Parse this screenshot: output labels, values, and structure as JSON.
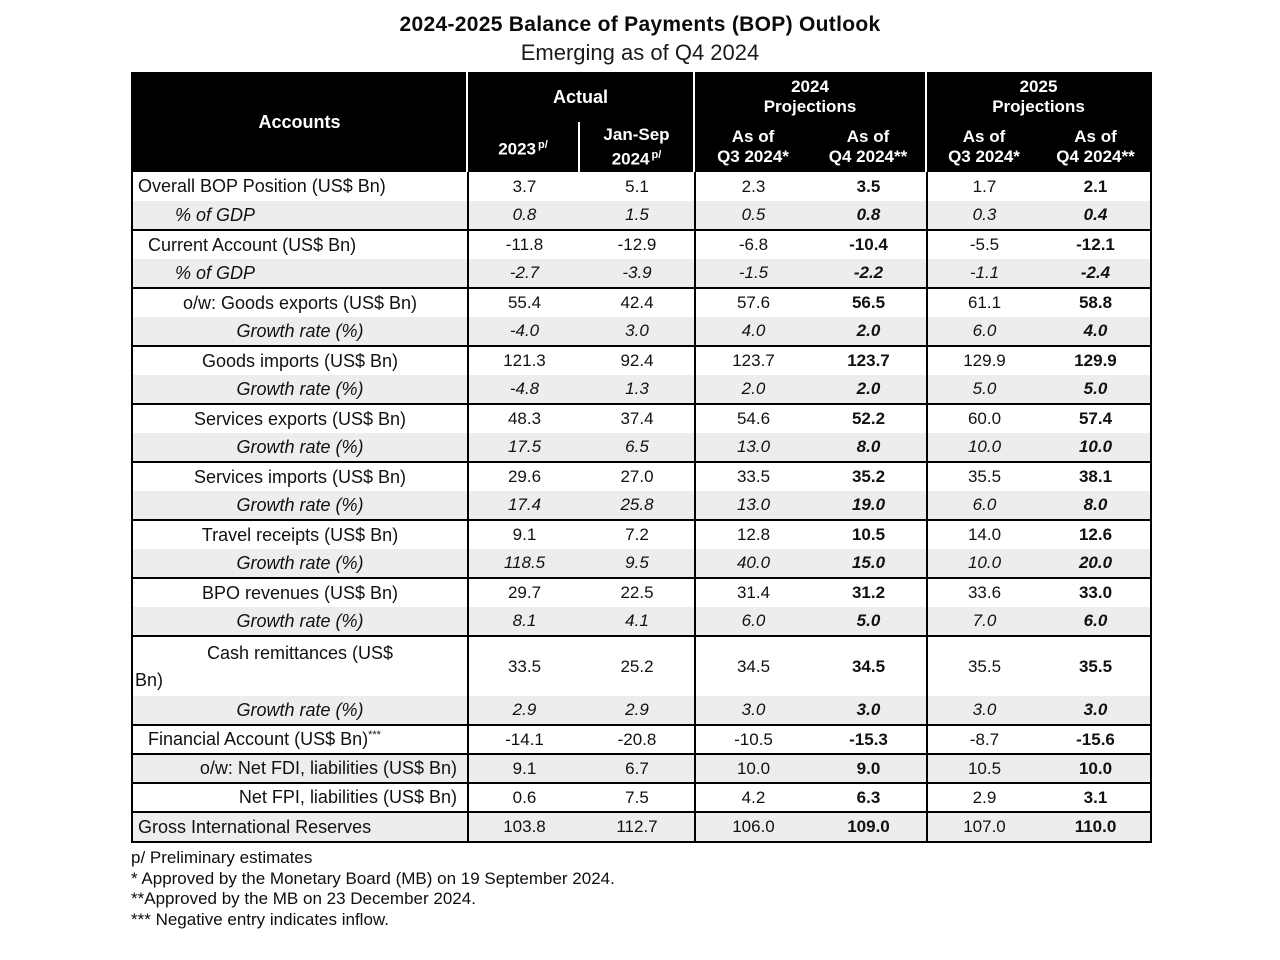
{
  "title": "2024-2025 Balance of Payments (BOP) Outlook",
  "subtitle": "Emerging as of Q4 2024",
  "colors": {
    "header_bg": "#000000",
    "header_text": "#ffffff",
    "shade_row": "#ededed",
    "border": "#000000"
  },
  "header": {
    "accounts": "Accounts",
    "groups": {
      "actual": "Actual",
      "proj2024_line1": "2024",
      "proj2024_line2": "Projections",
      "proj2025_line1": "2025",
      "proj2025_line2": "Projections"
    },
    "subcols": {
      "y2023": "2023",
      "y2023_sup": "p/",
      "jansep_line1": "Jan-Sep",
      "jansep_line2": "2024",
      "jansep_sup": "p/",
      "asof": "As of",
      "q3": "Q3 2024*",
      "q4": "Q4 2024**"
    }
  },
  "rows": [
    {
      "label": "Overall BOP Position (US$ Bn)",
      "align": "l0",
      "group": true,
      "values": [
        "3.7",
        "5.1",
        "2.3",
        "3.5",
        "1.7",
        "2.1"
      ]
    },
    {
      "label": "% of GDP",
      "align": "l2",
      "italic": true,
      "values": [
        "0.8",
        "1.5",
        "0.5",
        "0.8",
        "0.3",
        "0.4"
      ]
    },
    {
      "label": "Current Account (US$ Bn)",
      "align": "l1",
      "group": true,
      "values": [
        "-11.8",
        "-12.9",
        "-6.8",
        "-10.4",
        "-5.5",
        "-12.1"
      ]
    },
    {
      "label": "% of GDP",
      "align": "l2",
      "italic": true,
      "values": [
        "-2.7",
        "-3.9",
        "-1.5",
        "-2.2",
        "-1.1",
        "-2.4"
      ]
    },
    {
      "label": "o/w: Goods exports (US$ Bn)",
      "align": "c",
      "group": true,
      "values": [
        "55.4",
        "42.4",
        "57.6",
        "56.5",
        "61.1",
        "58.8"
      ]
    },
    {
      "label": "Growth rate (%)",
      "align": "c",
      "italic": true,
      "values": [
        "-4.0",
        "3.0",
        "4.0",
        "2.0",
        "6.0",
        "4.0"
      ]
    },
    {
      "label": "Goods imports (US$ Bn)",
      "align": "c",
      "group": true,
      "values": [
        "121.3",
        "92.4",
        "123.7",
        "123.7",
        "129.9",
        "129.9"
      ]
    },
    {
      "label": "Growth rate (%)",
      "align": "c",
      "italic": true,
      "values": [
        "-4.8",
        "1.3",
        "2.0",
        "2.0",
        "5.0",
        "5.0"
      ]
    },
    {
      "label": "Services exports (US$ Bn)",
      "align": "c",
      "group": true,
      "values": [
        "48.3",
        "37.4",
        "54.6",
        "52.2",
        "60.0",
        "57.4"
      ]
    },
    {
      "label": "Growth rate (%)",
      "align": "c",
      "italic": true,
      "values": [
        "17.5",
        "6.5",
        "13.0",
        "8.0",
        "10.0",
        "10.0"
      ]
    },
    {
      "label": "Services imports (US$ Bn)",
      "align": "c",
      "group": true,
      "values": [
        "29.6",
        "27.0",
        "33.5",
        "35.2",
        "35.5",
        "38.1"
      ]
    },
    {
      "label": "Growth rate (%)",
      "align": "c",
      "italic": true,
      "values": [
        "17.4",
        "25.8",
        "13.0",
        "19.0",
        "6.0",
        "8.0"
      ]
    },
    {
      "label": "Travel receipts (US$ Bn)",
      "align": "c",
      "group": true,
      "values": [
        "9.1",
        "7.2",
        "12.8",
        "10.5",
        "14.0",
        "12.6"
      ]
    },
    {
      "label": "Growth rate (%)",
      "align": "c",
      "italic": true,
      "values": [
        "118.5",
        "9.5",
        "40.0",
        "15.0",
        "10.0",
        "20.0"
      ]
    },
    {
      "label": "BPO revenues (US$ Bn)",
      "align": "c",
      "group": true,
      "values": [
        "29.7",
        "22.5",
        "31.4",
        "31.2",
        "33.6",
        "33.0"
      ]
    },
    {
      "label": "Growth rate (%)",
      "align": "c",
      "italic": true,
      "values": [
        "8.1",
        "4.1",
        "6.0",
        "5.0",
        "7.0",
        "6.0"
      ]
    },
    {
      "label": "Cash remittances (US$",
      "label2": "Bn)",
      "align": "c",
      "group": true,
      "tall": true,
      "values": [
        "33.5",
        "25.2",
        "34.5",
        "34.5",
        "35.5",
        "35.5"
      ]
    },
    {
      "label": "Growth rate (%)",
      "align": "c",
      "italic": true,
      "values": [
        "2.9",
        "2.9",
        "3.0",
        "3.0",
        "3.0",
        "3.0"
      ]
    },
    {
      "label": "Financial Account (US$ Bn)",
      "sup": "***",
      "align": "l1",
      "group": true,
      "values": [
        "-14.1",
        "-20.8",
        "-10.5",
        "-15.3",
        "-8.7",
        "-15.6"
      ]
    },
    {
      "label": "o/w: Net FDI, liabilities (US$ Bn)",
      "align": "r",
      "group": true,
      "values": [
        "9.1",
        "6.7",
        "10.0",
        "9.0",
        "10.5",
        "10.0"
      ]
    },
    {
      "label": "Net FPI, liabilities (US$ Bn)",
      "align": "r",
      "group": true,
      "values": [
        "0.6",
        "7.5",
        "4.2",
        "6.3",
        "2.9",
        "3.1"
      ]
    },
    {
      "label": "Gross International Reserves",
      "align": "l0",
      "group": true,
      "values": [
        "103.8",
        "112.7",
        "106.0",
        "109.0",
        "107.0",
        "110.0"
      ]
    }
  ],
  "footnotes": [
    "p/ Preliminary estimates",
    "* Approved by the Monetary Board (MB) on 19 September 2024.",
    "**Approved by the MB on 23 December 2024.",
    "*** Negative entry indicates inflow."
  ]
}
